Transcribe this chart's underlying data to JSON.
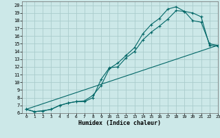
{
  "title": "",
  "xlabel": "Humidex (Indice chaleur)",
  "ylabel": "",
  "background_color": "#cce8e8",
  "grid_color": "#aacccc",
  "line_color": "#006666",
  "xlim": [
    -0.5,
    23
  ],
  "ylim": [
    6,
    20.5
  ],
  "xticks": [
    0,
    1,
    2,
    3,
    4,
    5,
    6,
    7,
    8,
    9,
    10,
    11,
    12,
    13,
    14,
    15,
    16,
    17,
    18,
    19,
    20,
    21,
    22,
    23
  ],
  "yticks": [
    6,
    7,
    8,
    9,
    10,
    11,
    12,
    13,
    14,
    15,
    16,
    17,
    18,
    19,
    20
  ],
  "series_upper_x": [
    0,
    1,
    2,
    3,
    4,
    5,
    6,
    7,
    8,
    9,
    10,
    11,
    12,
    13,
    14,
    15,
    16,
    17,
    18,
    19,
    20,
    21,
    22,
    23
  ],
  "series_upper_y": [
    6.5,
    6.2,
    6.3,
    6.5,
    7.0,
    7.3,
    7.5,
    7.6,
    8.3,
    9.6,
    11.8,
    12.5,
    13.5,
    14.5,
    16.3,
    17.5,
    18.3,
    19.5,
    19.8,
    19.2,
    19.0,
    18.5,
    14.8,
    14.7
  ],
  "series_lower_x": [
    0,
    1,
    2,
    3,
    4,
    5,
    6,
    7,
    8,
    9,
    10,
    11,
    12,
    13,
    14,
    15,
    16,
    17,
    18,
    19,
    20,
    21,
    22,
    23
  ],
  "series_lower_y": [
    6.5,
    6.2,
    6.3,
    6.5,
    7.0,
    7.3,
    7.5,
    7.5,
    8.0,
    10.4,
    11.9,
    12.0,
    13.2,
    14.0,
    15.5,
    16.5,
    17.3,
    18.2,
    19.3,
    19.2,
    18.0,
    17.8,
    15.0,
    14.8
  ],
  "series_line_x": [
    0,
    23
  ],
  "series_line_y": [
    6.5,
    14.8
  ]
}
